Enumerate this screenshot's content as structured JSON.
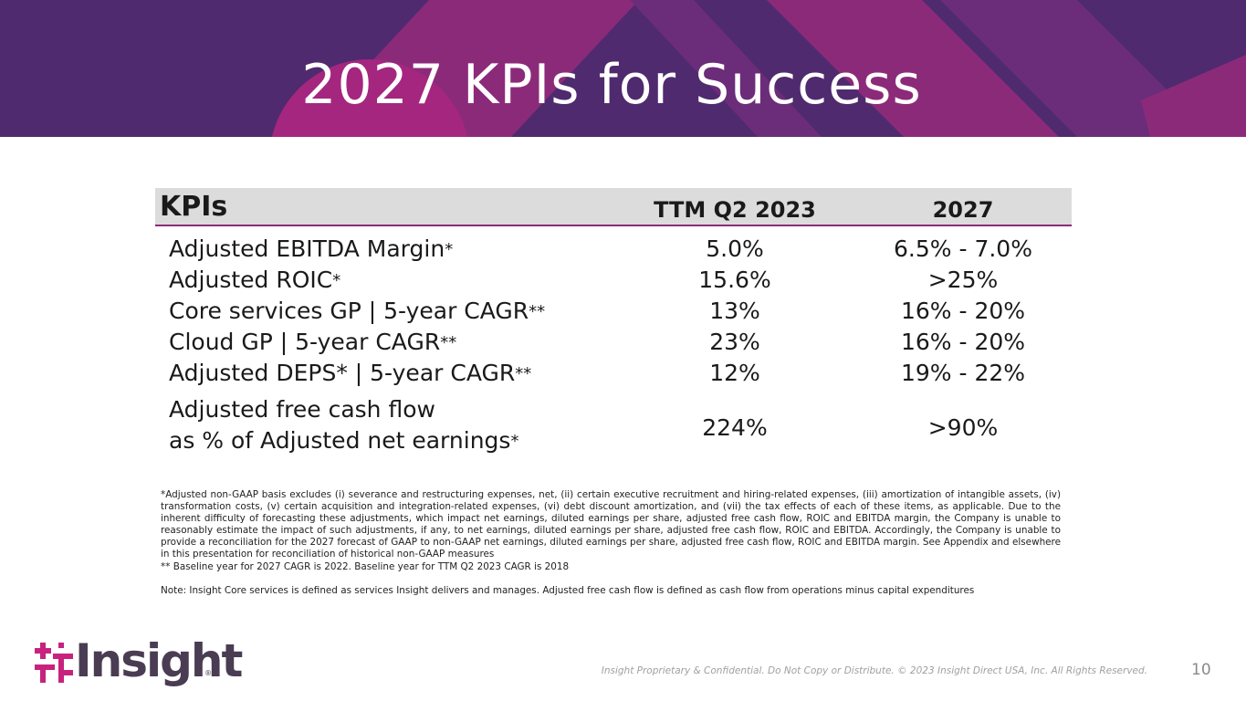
{
  "slide": {
    "title": "2027 KPIs for Success",
    "page_number": "10",
    "footer_legal": "Insight Proprietary & Confidential. Do Not Copy or Distribute. © 2023 Insight Direct USA, Inc. All Rights Reserved.",
    "brand": "Insight",
    "brand_mark": "®",
    "colors": {
      "banner_dark": "#4f2a6e",
      "banner_magenta": "#8c2a7a",
      "accent_line": "#8c2a7a",
      "logo_pink": "#c8227e"
    }
  },
  "table": {
    "headers": {
      "kpi": "KPIs",
      "ttm": "TTM Q2 2023",
      "target": "2027"
    },
    "rows": [
      {
        "label": "Adjusted EBITDA Margin",
        "mark": "*",
        "ttm": "5.0%",
        "target": "6.5% - 7.0%"
      },
      {
        "label": "Adjusted ROIC",
        "mark": "*",
        "ttm": "15.6%",
        "target": ">25%"
      },
      {
        "label": "Core services GP | 5-year CAGR",
        "mark": "**",
        "ttm": "13%",
        "target": "16% - 20%"
      },
      {
        "label": "Cloud GP | 5-year CAGR",
        "mark": "**",
        "ttm": "23%",
        "target": "16% - 20%"
      },
      {
        "label": "Adjusted DEPS* | 5-year CAGR",
        "mark": "**",
        "ttm": "12%",
        "target": "19% - 22%"
      },
      {
        "label_line1": "Adjusted free cash flow",
        "label_line2": "as % of Adjusted net earnings",
        "mark": "*",
        "ttm": "224%",
        "target": ">90%"
      }
    ]
  },
  "notes": {
    "footnote_1": "*Adjusted non-GAAP basis excludes (i) severance and restructuring expenses, net, (ii) certain executive recruitment and hiring-related expenses, (iii) amortization of intangible assets, (iv) transformation costs, (v) certain acquisition and integration-related expenses, (vi) debt discount amortization, and (vii) the tax effects of each of these items, as applicable. Due to the inherent difficulty of forecasting these adjustments, which impact net earnings, diluted earnings per share, adjusted free cash flow, ROIC and EBITDA margin, the Company is unable to reasonably estimate the impact of such adjustments, if any, to net earnings, diluted earnings per share, adjusted free cash flow, ROIC and EBITDA. Accordingly, the Company is unable to provide a reconciliation for the 2027 forecast of GAAP to non-GAAP net earnings, diluted earnings per share, adjusted free cash flow, ROIC and EBITDA margin. See Appendix and elsewhere in this presentation for reconciliation of historical non-GAAP measures",
    "footnote_2": "** Baseline year for 2027 CAGR is 2022. Baseline year for TTM Q2 2023 CAGR is 2018",
    "note": "Note: Insight Core services is defined as services Insight delivers and manages. Adjusted free cash flow is defined as cash flow from operations minus capital expenditures"
  }
}
